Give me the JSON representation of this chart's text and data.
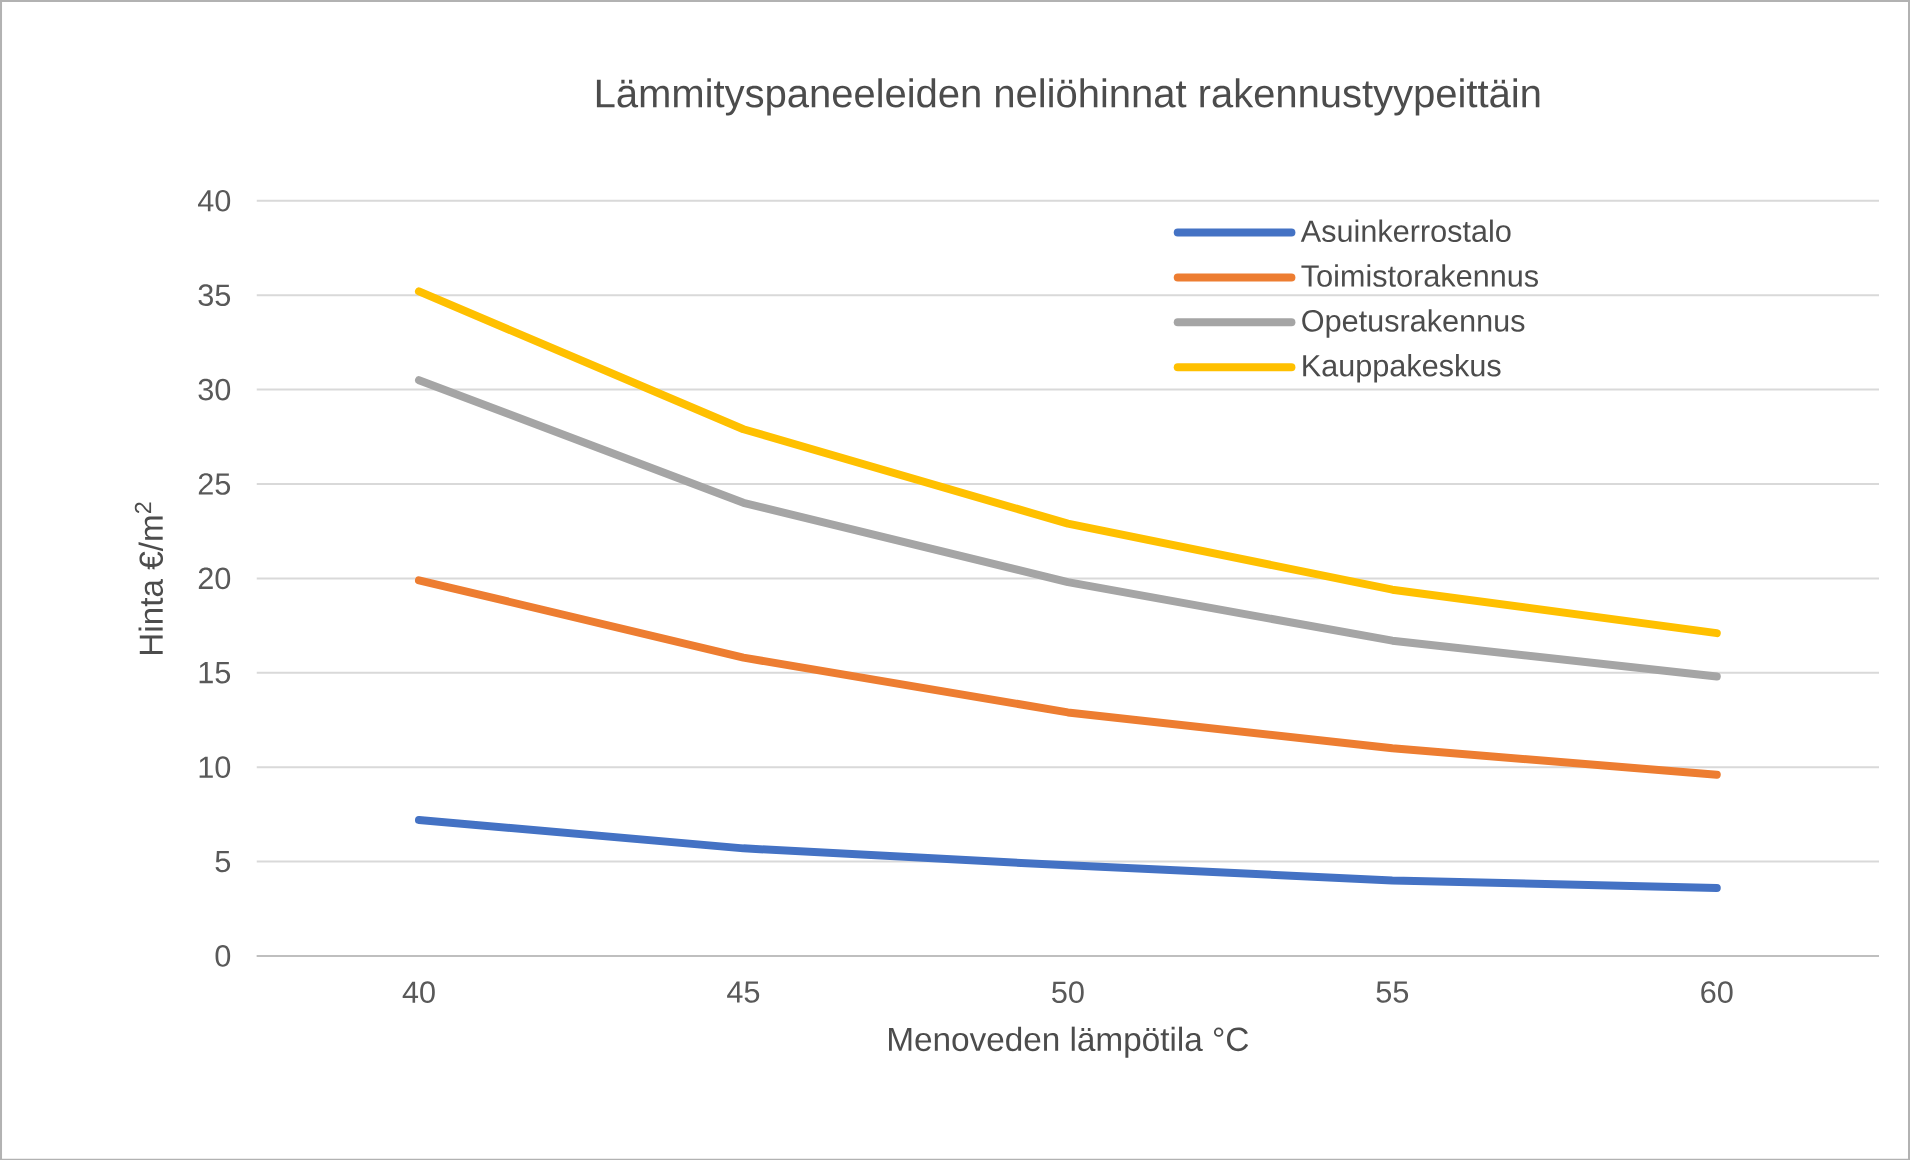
{
  "chart_data": {
    "type": "line",
    "title": "Lämmityspaneeleiden neliöhinnat rakennustyypeittäin",
    "xlabel": "Menoveden lämpötila °C",
    "ylabel": "Hinta €/m$^{2}$",
    "categories": [
      "40",
      "45",
      "50",
      "55",
      "60"
    ],
    "series": [
      {
        "name": "Asuinkerrostalo",
        "color": "#4472c4",
        "values": [
          7.2,
          5.7,
          4.8,
          4.0,
          3.6
        ]
      },
      {
        "name": "Toimistorakennus",
        "color": "#ed7d31",
        "values": [
          19.9,
          15.8,
          12.9,
          11.0,
          9.6
        ]
      },
      {
        "name": "Opetusrakennus",
        "color": "#a5a5a5",
        "values": [
          30.5,
          24.0,
          19.8,
          16.7,
          14.8
        ]
      },
      {
        "name": "Kauppakeskus",
        "color": "#ffc000",
        "values": [
          35.2,
          27.9,
          22.9,
          19.4,
          17.1
        ]
      }
    ],
    "ylim": [
      0,
      40
    ],
    "yticks": [
      0,
      5,
      10,
      15,
      20,
      25,
      30,
      35,
      40
    ],
    "grid": "y",
    "legend": "top right",
    "marker": "none",
    "line_style": "solid"
  }
}
